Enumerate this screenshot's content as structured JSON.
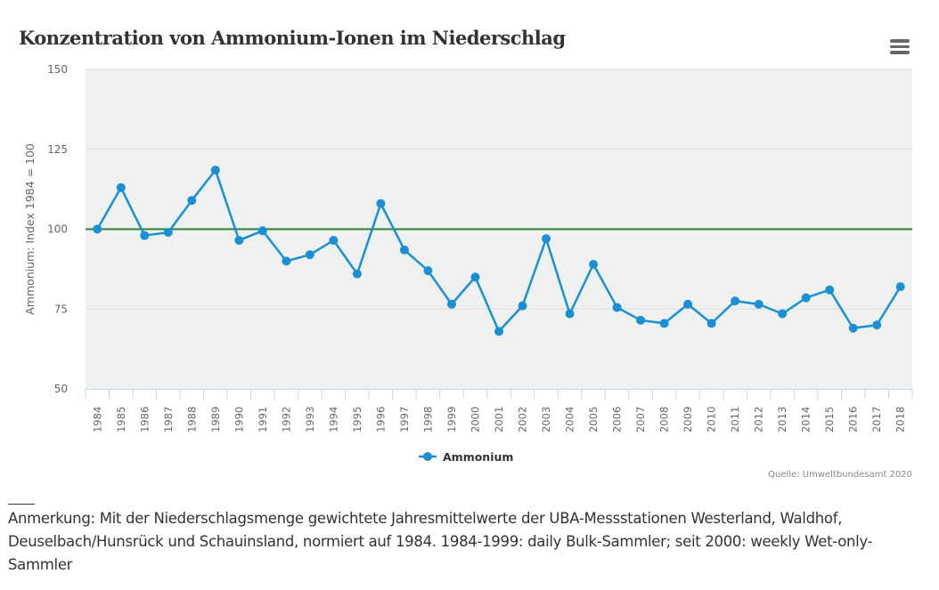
{
  "header": {
    "title": "Konzentration von Ammonium-Ionen im Niederschlag",
    "menu_icon": "hamburger-menu-icon"
  },
  "colors": {
    "series": "#1a8fd6",
    "reference_line": "#2e7d32",
    "plot_background": "#eff1f1",
    "grid": "#dcdcdc"
  },
  "chart_data": {
    "type": "line",
    "title": "Konzentration von Ammonium-Ionen im Niederschlag",
    "xlabel": "",
    "ylabel": "Ammonium: Index 1984 = 100",
    "ylim": [
      50,
      150
    ],
    "yticks": [
      "50",
      "75",
      "100",
      "125",
      "150"
    ],
    "grid": true,
    "reference_line": 100,
    "legend_position": "bottom-center",
    "categories": [
      "1984",
      "1985",
      "1986",
      "1987",
      "1988",
      "1989",
      "1990",
      "1991",
      "1992",
      "1993",
      "1994",
      "1995",
      "1996",
      "1997",
      "1998",
      "1999",
      "2000",
      "2001",
      "2002",
      "2003",
      "2004",
      "2005",
      "2006",
      "2007",
      "2008",
      "2009",
      "2010",
      "2011",
      "2012",
      "2013",
      "2014",
      "2015",
      "2016",
      "2017",
      "2018"
    ],
    "series": [
      {
        "name": "Ammonium",
        "values": [
          100,
          113,
          98,
          99,
          109,
          118.5,
          96.5,
          99.5,
          90,
          92,
          96.5,
          86,
          108,
          93.5,
          87,
          76.5,
          85,
          68,
          76,
          97,
          73.5,
          89,
          75.5,
          71.5,
          70.5,
          76.5,
          70.5,
          77.5,
          76.5,
          73.5,
          78.5,
          81,
          69,
          70,
          82
        ]
      }
    ]
  },
  "source": "Quelle: Umweltbundesamt 2020",
  "note": "Anmerkung: Mit der Niederschlagsmenge gewichtete Jahresmittelwerte der UBA-Messstationen Westerland, Waldhof, Deuselbach/Hunsrück und Schauinsland, normiert auf 1984. 1984-1999: daily Bulk-Sammler; seit 2000: weekly Wet-only-Sammler"
}
